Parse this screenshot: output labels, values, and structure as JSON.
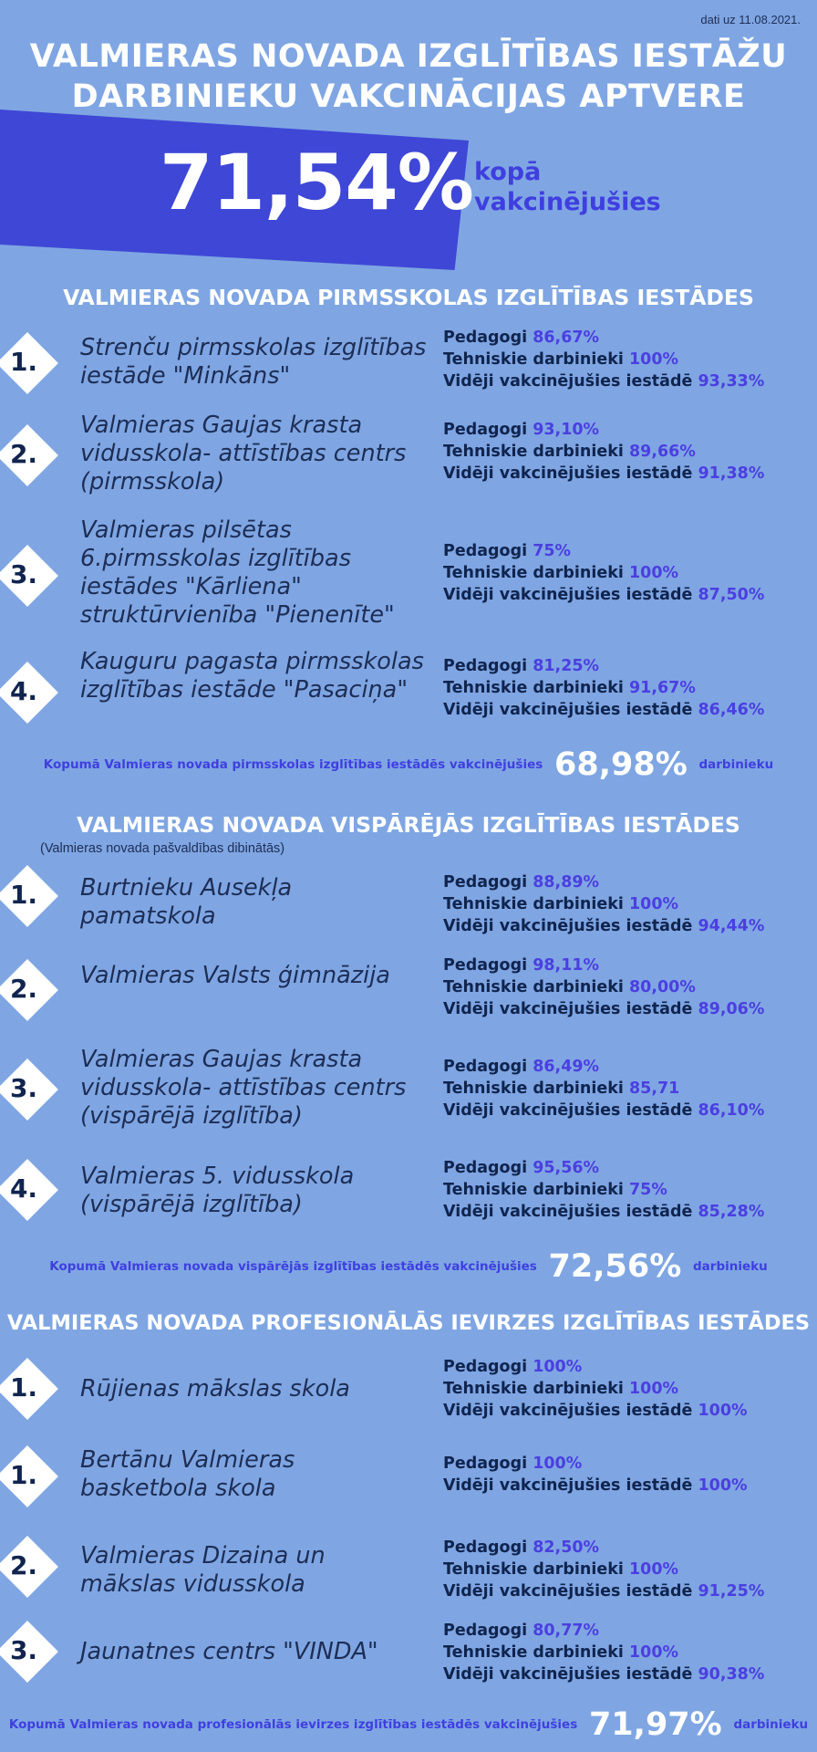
{
  "date": "dati uz 11.08.2021.",
  "title_line1": "VALMIERAS NOVADA IZGLĪTĪBAS IESTĀŽU",
  "title_line2": "DARBINIEKU VAKCINĀCIJAS APTVERE",
  "total_percent": "71,54%",
  "total_caption_line1": "kopā",
  "total_caption_line2": "vakcinējušies",
  "colors": {
    "background": "#7fa6e3",
    "banner": "#3f47d6",
    "accent": "#4b3fe0",
    "dark": "#10244e"
  },
  "labels": {
    "pedagogi": "Pedagogi",
    "tehniskie": "Tehniskie darbinieki",
    "videji": "Vidēji vakcinējušies iestādē"
  },
  "sections": [
    {
      "title": "VALMIERAS NOVADA PIRMSSKOLAS IZGLĪTĪBAS IESTĀDES",
      "subtitle": "",
      "items": [
        {
          "rank": "1.",
          "name": "Strenču pirmsskolas izglītības iestāde \"Minkāns\"",
          "pedagogi": "86,67%",
          "tehniskie": "100%",
          "videji": "93,33%"
        },
        {
          "rank": "2.",
          "name": "Valmieras Gaujas krasta vidusskola- attīstības centrs (pirmsskola)",
          "pedagogi": "93,10%",
          "tehniskie": "89,66%",
          "videji": "91,38%"
        },
        {
          "rank": "3.",
          "name": "Valmieras pilsētas 6.pirmsskolas izglītības iestādes \"Kārliena\" struktūrvienība \"Pienenīte\"",
          "pedagogi": "75%",
          "tehniskie": "100%",
          "videji": "87,50%"
        },
        {
          "rank": "4.",
          "name": "Kauguru pagasta pirmsskolas izglītības iestāde \"Pasaciņa\"",
          "pedagogi": "81,25%",
          "tehniskie": "91,67%",
          "videji": "86,46%"
        }
      ],
      "total_prefix": "Kopumā Valmieras novada pirmsskolas izglītības iestādēs vakcinējušies",
      "total_percent": "68,98%",
      "total_suffix": "darbinieku"
    },
    {
      "title": "VALMIERAS NOVADA VISPĀRĒJĀS IZGLĪTĪBAS IESTĀDES",
      "subtitle": "(Valmieras novada pašvaldības dibinātās)",
      "items": [
        {
          "rank": "1.",
          "name": "Burtnieku Ausekļa pamatskola",
          "pedagogi": "88,89%",
          "tehniskie": "100%",
          "videji": "94,44%"
        },
        {
          "rank": "2.",
          "name": "Valmieras Valsts ģimnāzija",
          "pedagogi": "98,11%",
          "tehniskie": "80,00%",
          "videji": "89,06%"
        },
        {
          "rank": "3.",
          "name": "Valmieras Gaujas krasta vidusskola- attīstības centrs (vispārējā izglītība)",
          "pedagogi": "86,49%",
          "tehniskie": "85,71",
          "videji": "86,10%"
        },
        {
          "rank": "4.",
          "name": "Valmieras 5. vidusskola (vispārējā izglītība)",
          "pedagogi": "95,56%",
          "tehniskie": "75%",
          "videji": "85,28%"
        }
      ],
      "total_prefix": "Kopumā Valmieras novada vispārējās izglītības iestādēs vakcinējušies",
      "total_percent": "72,56%",
      "total_suffix": "darbinieku"
    },
    {
      "title": "VALMIERAS NOVADA PROFESIONĀLĀS IEVIRZES IZGLĪTĪBAS IESTĀDES",
      "subtitle": "",
      "items": [
        {
          "rank": "1.",
          "name": "Rūjienas mākslas skola",
          "pedagogi": "100%",
          "tehniskie": "100%",
          "videji": "100%"
        },
        {
          "rank": "1.",
          "name": "Bertānu Valmieras basketbola skola",
          "pedagogi": "100%",
          "videji": "100%"
        },
        {
          "rank": "2.",
          "name": "Valmieras Dizaina un mākslas vidusskola",
          "pedagogi": "82,50%",
          "tehniskie": "100%",
          "videji": "91,25%"
        },
        {
          "rank": "3.",
          "name": "Jaunatnes centrs \"VINDA\"",
          "pedagogi": "80,77%",
          "tehniskie": "100%",
          "videji": "90,38%"
        }
      ],
      "total_prefix": "Kopumā Valmieras novada profesionālās ievirzes izglītības iestādēs vakcinējušies",
      "total_percent": "71,97%",
      "total_suffix": "darbinieku"
    }
  ]
}
